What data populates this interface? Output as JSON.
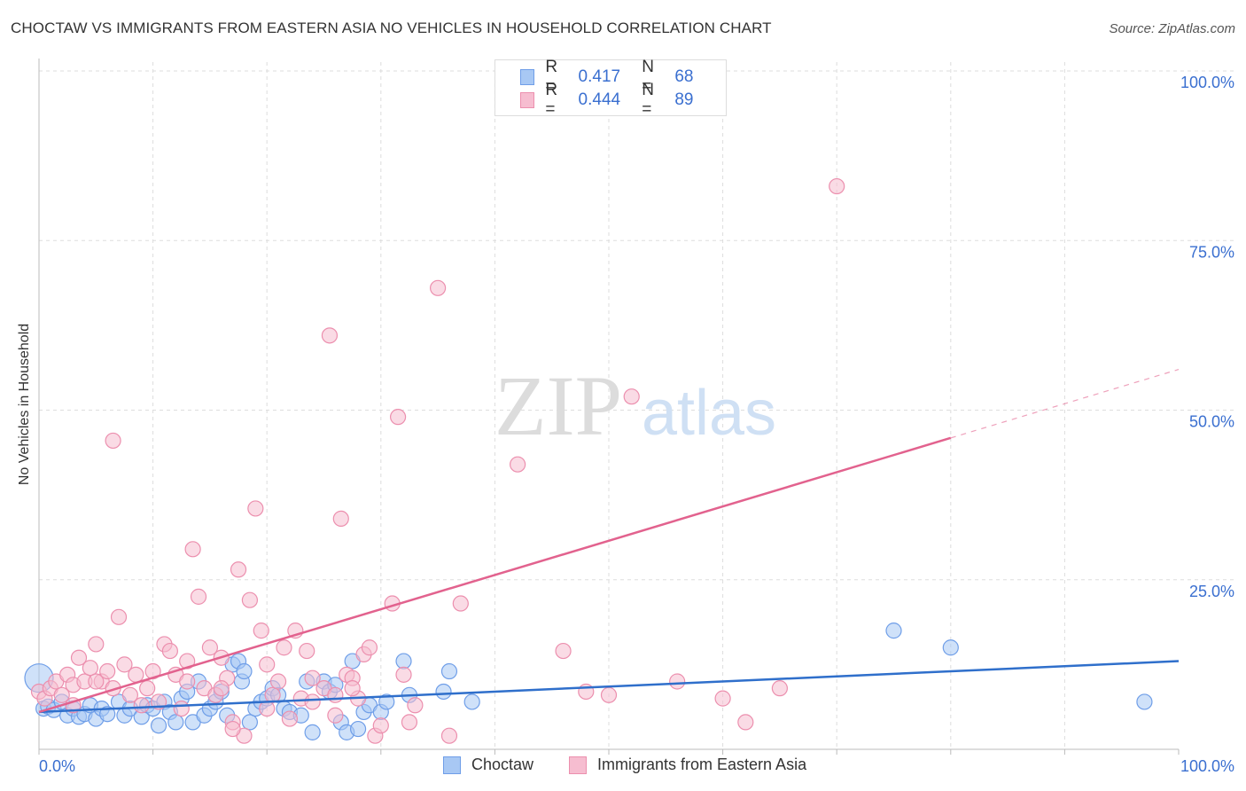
{
  "title": "CHOCTAW VS IMMIGRANTS FROM EASTERN ASIA NO VEHICLES IN HOUSEHOLD CORRELATION CHART",
  "source": "Source: ZipAtlas.com",
  "watermark": {
    "zip": "ZIP",
    "atlas": "atlas"
  },
  "legend_top": [
    {
      "r_label": "R =",
      "r_value": "0.417",
      "n_label": "N =",
      "n_value": "68"
    },
    {
      "r_label": "R =",
      "r_value": "0.444",
      "n_label": "N =",
      "n_value": "89"
    }
  ],
  "legend_bottom": [
    "Choctaw",
    "Immigrants from Eastern Asia"
  ],
  "colors": {
    "blue_fill": "#a8c8f4",
    "blue_stroke": "#6f9ee8",
    "blue_line": "#2f6fcb",
    "pink_fill": "#f6bdd0",
    "pink_stroke": "#ec8fae",
    "pink_line": "#e2628e",
    "tick_color": "#3a6fd0",
    "grid": "#dddddd"
  },
  "chart_data": {
    "type": "scatter",
    "title": "CHOCTAW VS IMMIGRANTS FROM EASTERN ASIA NO VEHICLES IN HOUSEHOLD CORRELATION CHART",
    "xlabel": "",
    "ylabel": "No Vehicles in Household",
    "xlim": [
      0,
      100
    ],
    "ylim": [
      0,
      100
    ],
    "x_tick_labels": [
      "0.0%",
      "100.0%"
    ],
    "y_tick_labels": [
      "25.0%",
      "50.0%",
      "75.0%",
      "100.0%"
    ],
    "y_ticks": [
      25,
      50,
      75,
      100
    ],
    "grid": true,
    "legend_placement": "top-center",
    "series": [
      {
        "name": "Choctaw",
        "r": 0.417,
        "n": 68,
        "trend": {
          "x": [
            0,
            100
          ],
          "y": [
            5.5,
            13.0
          ],
          "dashed_after": null
        },
        "points": [
          [
            0,
            10.5
          ],
          [
            0.4,
            6
          ],
          [
            0.8,
            6.3
          ],
          [
            1.3,
            5.8
          ],
          [
            2,
            7
          ],
          [
            2.5,
            5
          ],
          [
            3,
            6
          ],
          [
            3.5,
            4.8
          ],
          [
            4,
            5.2
          ],
          [
            4.5,
            6.5
          ],
          [
            5,
            4.5
          ],
          [
            5.5,
            6
          ],
          [
            6,
            5.2
          ],
          [
            7,
            7
          ],
          [
            7.5,
            5
          ],
          [
            8,
            6
          ],
          [
            9,
            4.8
          ],
          [
            9.5,
            6.5
          ],
          [
            10,
            6
          ],
          [
            10.5,
            3.5
          ],
          [
            11,
            7
          ],
          [
            11.5,
            5.5
          ],
          [
            12,
            4
          ],
          [
            12.5,
            7.5
          ],
          [
            13,
            8.5
          ],
          [
            13.5,
            4
          ],
          [
            14,
            10
          ],
          [
            14.5,
            5
          ],
          [
            15,
            6
          ],
          [
            15.5,
            7
          ],
          [
            16,
            8.5
          ],
          [
            16.5,
            5
          ],
          [
            17,
            12.5
          ],
          [
            17.5,
            13
          ],
          [
            17.8,
            10
          ],
          [
            18,
            11.5
          ],
          [
            18.5,
            4
          ],
          [
            19,
            6
          ],
          [
            19.5,
            7
          ],
          [
            20,
            7.5
          ],
          [
            20.5,
            9
          ],
          [
            21,
            8
          ],
          [
            21.5,
            6
          ],
          [
            22,
            5.5
          ],
          [
            23,
            5
          ],
          [
            23.5,
            10
          ],
          [
            24,
            2.5
          ],
          [
            25,
            10
          ],
          [
            25.5,
            8.5
          ],
          [
            26,
            9.5
          ],
          [
            26.5,
            4
          ],
          [
            27,
            2.5
          ],
          [
            27.5,
            13
          ],
          [
            28,
            3
          ],
          [
            28.5,
            5.5
          ],
          [
            29,
            6.5
          ],
          [
            30,
            5.5
          ],
          [
            30.5,
            7
          ],
          [
            32,
            13
          ],
          [
            32.5,
            8
          ],
          [
            35.5,
            8.5
          ],
          [
            36,
            11.5
          ],
          [
            38,
            7
          ],
          [
            75,
            17.5
          ],
          [
            80,
            15
          ],
          [
            97,
            7
          ]
        ]
      },
      {
        "name": "Immigrants from Eastern Asia",
        "r": 0.444,
        "n": 89,
        "trend": {
          "x": [
            0,
            100
          ],
          "y": [
            5.5,
            56.0
          ],
          "dashed_after": 80
        },
        "points": [
          [
            0,
            8.5
          ],
          [
            0.5,
            7.5
          ],
          [
            1,
            9
          ],
          [
            1.5,
            10
          ],
          [
            2,
            8
          ],
          [
            2.5,
            11
          ],
          [
            3,
            9.5
          ],
          [
            3.5,
            13.5
          ],
          [
            4,
            10
          ],
          [
            4.5,
            12
          ],
          [
            5,
            15.5
          ],
          [
            5.5,
            10
          ],
          [
            6,
            11.5
          ],
          [
            6.5,
            9
          ],
          [
            7,
            19.5
          ],
          [
            7.5,
            12.5
          ],
          [
            8,
            8
          ],
          [
            8.5,
            11
          ],
          [
            9,
            6.5
          ],
          [
            9.5,
            9
          ],
          [
            10,
            11.5
          ],
          [
            10.5,
            7
          ],
          [
            11,
            15.5
          ],
          [
            11.5,
            14.5
          ],
          [
            12,
            11
          ],
          [
            12.5,
            6
          ],
          [
            13,
            13
          ],
          [
            13.5,
            29.5
          ],
          [
            14,
            22.5
          ],
          [
            14.5,
            9
          ],
          [
            15,
            15
          ],
          [
            15.5,
            8
          ],
          [
            16,
            13.5
          ],
          [
            16.5,
            10.5
          ],
          [
            17,
            4
          ],
          [
            17.5,
            26.5
          ],
          [
            18,
            2
          ],
          [
            18.5,
            22
          ],
          [
            19,
            35.5
          ],
          [
            19.5,
            17.5
          ],
          [
            20,
            12.5
          ],
          [
            20.5,
            8
          ],
          [
            21,
            10
          ],
          [
            21.5,
            15
          ],
          [
            22,
            4.5
          ],
          [
            22.5,
            17.5
          ],
          [
            23,
            7.5
          ],
          [
            23.5,
            14.5
          ],
          [
            24,
            10.5
          ],
          [
            25,
            9
          ],
          [
            25.5,
            61
          ],
          [
            26,
            5
          ],
          [
            26.5,
            34
          ],
          [
            27,
            11
          ],
          [
            27.5,
            10.5
          ],
          [
            28,
            7.5
          ],
          [
            28.5,
            14
          ],
          [
            29,
            15
          ],
          [
            29.5,
            2
          ],
          [
            30,
            3.5
          ],
          [
            31,
            21.5
          ],
          [
            31.5,
            49
          ],
          [
            32,
            11
          ],
          [
            32.5,
            4
          ],
          [
            33,
            6.5
          ],
          [
            35,
            68
          ],
          [
            36,
            2
          ],
          [
            37,
            21.5
          ],
          [
            42,
            42
          ],
          [
            46,
            14.5
          ],
          [
            48,
            8.5
          ],
          [
            50,
            8
          ],
          [
            52,
            52
          ],
          [
            56,
            10
          ],
          [
            60,
            7.5
          ],
          [
            62,
            4
          ],
          [
            65,
            9
          ],
          [
            70,
            83
          ],
          [
            6.5,
            45.5
          ],
          [
            3,
            6.5
          ],
          [
            5,
            10
          ],
          [
            13,
            10
          ],
          [
            16,
            9
          ],
          [
            26,
            8
          ],
          [
            20,
            6
          ],
          [
            17,
            3
          ],
          [
            24,
            7
          ],
          [
            27.5,
            9
          ]
        ]
      }
    ]
  }
}
